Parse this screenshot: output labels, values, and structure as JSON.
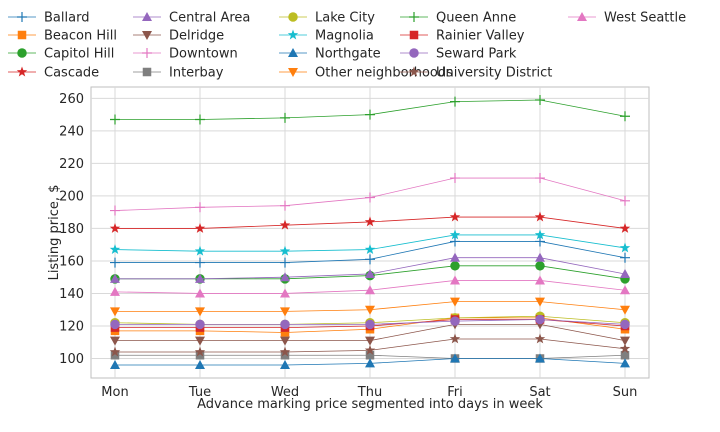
{
  "chart_data": {
    "type": "line",
    "xlabel": "Advance marking price segmented into days in week",
    "ylabel": "Listing price, $",
    "categories": [
      "Mon",
      "Tue",
      "Wed",
      "Thu",
      "Fri",
      "Sat",
      "Sun"
    ],
    "ylim": [
      88,
      267
    ],
    "yticks": [
      100,
      120,
      140,
      160,
      180,
      200,
      220,
      240,
      260
    ],
    "grid": true,
    "legend_position": "top",
    "series": [
      {
        "name": "Ballard",
        "color": "#1f77b4",
        "marker": "plus",
        "values": [
          159,
          159,
          159,
          161,
          172,
          172,
          162
        ]
      },
      {
        "name": "Beacon Hill",
        "color": "#ff7f0e",
        "marker": "square",
        "values": [
          117,
          117,
          116,
          118,
          125,
          125,
          118
        ]
      },
      {
        "name": "Capitol Hill",
        "color": "#2ca02c",
        "marker": "circle",
        "values": [
          149,
          149,
          149,
          151,
          157,
          157,
          149
        ]
      },
      {
        "name": "Cascade",
        "color": "#d62728",
        "marker": "star",
        "values": [
          180,
          180,
          182,
          184,
          187,
          187,
          180
        ]
      },
      {
        "name": "Central Area",
        "color": "#9467bd",
        "marker": "triangle-up",
        "values": [
          149,
          149,
          150,
          152,
          162,
          162,
          152
        ]
      },
      {
        "name": "Delridge",
        "color": "#8c564b",
        "marker": "triangle-down",
        "values": [
          111,
          111,
          111,
          111,
          121,
          121,
          111
        ]
      },
      {
        "name": "Downtown",
        "color": "#e377c2",
        "marker": "plus",
        "values": [
          191,
          193,
          194,
          199,
          211,
          211,
          197
        ]
      },
      {
        "name": "Interbay",
        "color": "#7f7f7f",
        "marker": "square",
        "values": [
          102,
          102,
          102,
          102,
          100,
          100,
          102
        ]
      },
      {
        "name": "Lake City",
        "color": "#bcbd22",
        "marker": "circle",
        "values": [
          122,
          121,
          121,
          122,
          125,
          126,
          122
        ]
      },
      {
        "name": "Magnolia",
        "color": "#17becf",
        "marker": "star",
        "values": [
          167,
          166,
          166,
          167,
          176,
          176,
          168
        ]
      },
      {
        "name": "Northgate",
        "color": "#1f77b4",
        "marker": "triangle-up",
        "values": [
          96,
          96,
          96,
          97,
          100,
          100,
          97
        ]
      },
      {
        "name": "Other neighborhoods",
        "color": "#ff7f0e",
        "marker": "triangle-down",
        "values": [
          129,
          129,
          129,
          130,
          135,
          135,
          130
        ]
      },
      {
        "name": "Queen Anne",
        "color": "#2ca02c",
        "marker": "plus",
        "values": [
          247,
          247,
          248,
          250,
          258,
          259,
          249
        ]
      },
      {
        "name": "Rainier Valley",
        "color": "#d62728",
        "marker": "square",
        "values": [
          119,
          119,
          119,
          120,
          124,
          124,
          120
        ]
      },
      {
        "name": "Seward Park",
        "color": "#9467bd",
        "marker": "circle",
        "values": [
          121,
          121,
          121,
          121,
          123,
          124,
          121
        ]
      },
      {
        "name": "University District",
        "color": "#8c564b",
        "marker": "star",
        "values": [
          104,
          104,
          104,
          105,
          112,
          112,
          106
        ]
      },
      {
        "name": "West Seattle",
        "color": "#e377c2",
        "marker": "triangle-up",
        "values": [
          141,
          140,
          140,
          142,
          148,
          148,
          142
        ]
      }
    ]
  }
}
